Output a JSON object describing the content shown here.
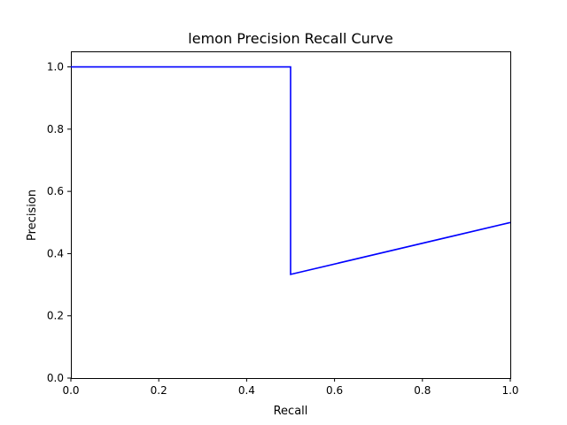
{
  "chart_data": {
    "type": "line",
    "title": "lemon Precision Recall Curve",
    "xlabel": "Recall",
    "ylabel": "Precision",
    "xlim": [
      0,
      1
    ],
    "ylim": [
      0,
      1.05
    ],
    "grid": false,
    "xticks": [
      0,
      0.2,
      0.4,
      0.6,
      0.8,
      1.0
    ],
    "xtick_labels": [
      "0.0",
      "0.2",
      "0.4",
      "0.6",
      "0.8",
      "1.0"
    ],
    "yticks": [
      0,
      0.2,
      0.4,
      0.6,
      0.8,
      1.0
    ],
    "ytick_labels": [
      "0.0",
      "0.2",
      "0.4",
      "0.6",
      "0.8",
      "1.0"
    ],
    "series": [
      {
        "color": "#0000ff",
        "x": [
          0.0,
          0.5,
          0.5,
          1.0
        ],
        "y": [
          1.0,
          1.0,
          0.3333,
          0.5
        ]
      }
    ]
  }
}
